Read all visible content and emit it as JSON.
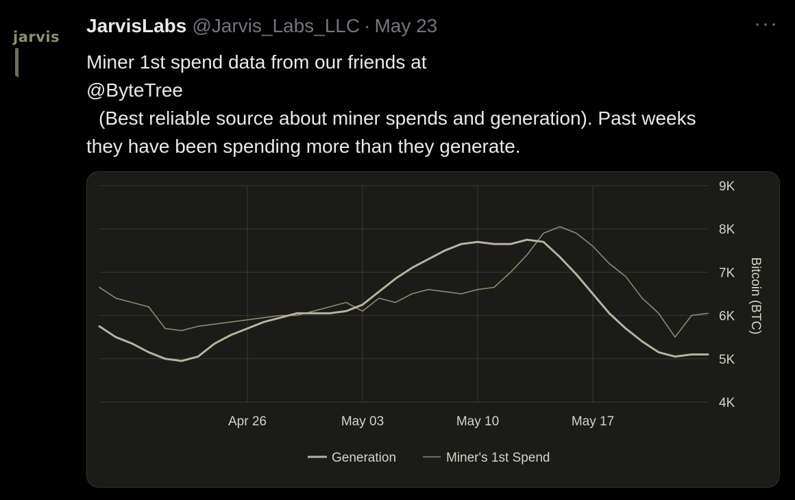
{
  "tweet": {
    "avatar_text": "jarvis",
    "display_name": "JarvisLabs",
    "handle": "@Jarvis_Labs_LLC",
    "separator": "·",
    "date": "May 23",
    "more_icon": "···",
    "line1": "Miner 1st spend data from our friends at",
    "mention": "@ByteTree",
    "line3": "(Best reliable source about miner spends and generation). Past weeks",
    "line4": "they have been spending more than they generate."
  },
  "colors": {
    "background": "#000000",
    "card_background": "#1b1b17",
    "generation": "#b6b39f",
    "spend": "#8b8c72",
    "grid": "#3a3a34"
  },
  "chart_data": {
    "type": "line",
    "title": "",
    "xlabel": "",
    "ylabel": "Bitcoin (BTC)",
    "ylim": [
      4000,
      9000
    ],
    "yticks": [
      4000,
      5000,
      6000,
      7000,
      8000,
      9000
    ],
    "ytick_labels": [
      "4K",
      "5K",
      "6K",
      "7K",
      "8K",
      "9K"
    ],
    "xlim": [
      "2021-04-17",
      "2021-05-24"
    ],
    "xticks": [
      "2021-04-26",
      "2021-05-03",
      "2021-05-10",
      "2021-05-17"
    ],
    "xtick_labels": [
      "Apr 26",
      "May 03",
      "May 10",
      "May 17"
    ],
    "grid": true,
    "legend": "bottom",
    "series": [
      {
        "name": "Generation",
        "x": [
          "2021-04-17",
          "2021-04-18",
          "2021-04-19",
          "2021-04-20",
          "2021-04-21",
          "2021-04-22",
          "2021-04-23",
          "2021-04-24",
          "2021-04-25",
          "2021-04-26",
          "2021-04-27",
          "2021-04-28",
          "2021-04-29",
          "2021-04-30",
          "2021-05-01",
          "2021-05-02",
          "2021-05-03",
          "2021-05-04",
          "2021-05-05",
          "2021-05-06",
          "2021-05-07",
          "2021-05-08",
          "2021-05-09",
          "2021-05-10",
          "2021-05-11",
          "2021-05-12",
          "2021-05-13",
          "2021-05-14",
          "2021-05-15",
          "2021-05-16",
          "2021-05-17",
          "2021-05-18",
          "2021-05-19",
          "2021-05-20",
          "2021-05-21",
          "2021-05-22",
          "2021-05-23",
          "2021-05-24"
        ],
        "values": [
          5750,
          5500,
          5350,
          5150,
          5000,
          4950,
          5050,
          5350,
          5550,
          5700,
          5850,
          5950,
          6050,
          6050,
          6050,
          6100,
          6250,
          6550,
          6850,
          7100,
          7300,
          7500,
          7650,
          7700,
          7650,
          7650,
          7750,
          7700,
          7350,
          6950,
          6500,
          6050,
          5700,
          5400,
          5150,
          5050,
          5100,
          5100
        ]
      },
      {
        "name": "Miner's 1st Spend",
        "x": [
          "2021-04-17",
          "2021-04-18",
          "2021-04-19",
          "2021-04-20",
          "2021-04-21",
          "2021-04-22",
          "2021-04-23",
          "2021-04-24",
          "2021-04-25",
          "2021-04-26",
          "2021-04-27",
          "2021-04-28",
          "2021-04-29",
          "2021-04-30",
          "2021-05-01",
          "2021-05-02",
          "2021-05-03",
          "2021-05-04",
          "2021-05-05",
          "2021-05-06",
          "2021-05-07",
          "2021-05-08",
          "2021-05-09",
          "2021-05-10",
          "2021-05-11",
          "2021-05-12",
          "2021-05-13",
          "2021-05-14",
          "2021-05-15",
          "2021-05-16",
          "2021-05-17",
          "2021-05-18",
          "2021-05-19",
          "2021-05-20",
          "2021-05-21",
          "2021-05-22",
          "2021-05-23",
          "2021-05-24"
        ],
        "values": [
          6650,
          6400,
          6300,
          6200,
          5700,
          5650,
          5750,
          5800,
          5850,
          5900,
          5950,
          6000,
          6000,
          6100,
          6200,
          6300,
          6100,
          6400,
          6300,
          6500,
          6600,
          6550,
          6500,
          6600,
          6650,
          7000,
          7400,
          7900,
          8050,
          7900,
          7600,
          7200,
          6900,
          6400,
          6050,
          5500,
          6000,
          6050
        ]
      }
    ]
  }
}
